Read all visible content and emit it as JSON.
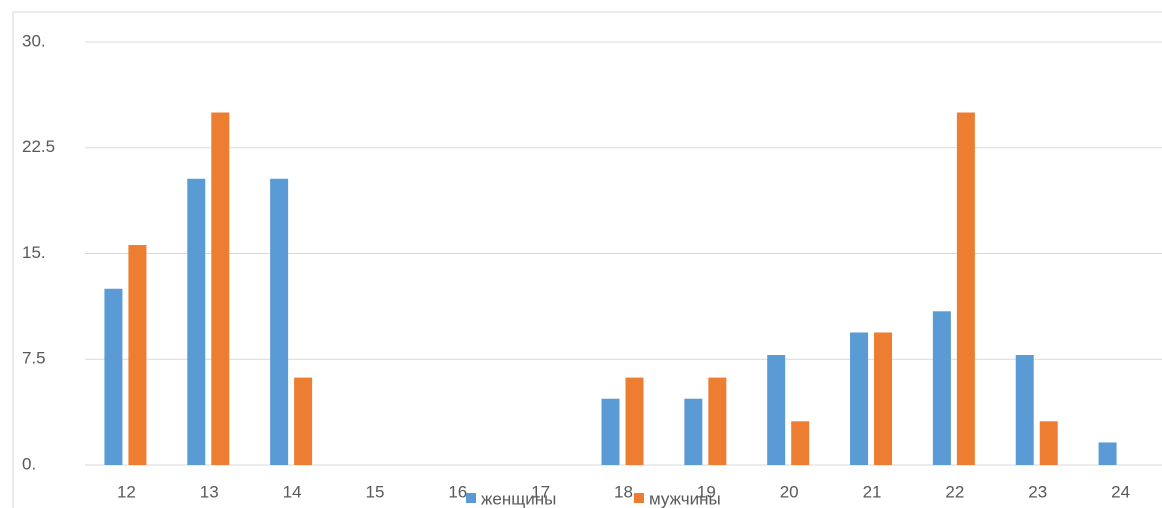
{
  "chart_data": {
    "type": "bar",
    "categories": [
      "12",
      "13",
      "14",
      "15",
      "16",
      "17",
      "18",
      "19",
      "20",
      "21",
      "22",
      "23",
      "24"
    ],
    "series": [
      {
        "name": "женщины",
        "color": "#5b9bd5",
        "values": [
          12.5,
          20.3,
          20.3,
          0,
          0,
          0,
          4.7,
          4.7,
          7.8,
          9.4,
          10.9,
          7.8,
          1.6
        ]
      },
      {
        "name": "мужчины",
        "color": "#ed7d31",
        "values": [
          15.6,
          25,
          6.2,
          0,
          0,
          0,
          6.2,
          6.2,
          3.1,
          9.4,
          25,
          3.1,
          0
        ]
      }
    ],
    "ylim": [
      0,
      30
    ],
    "yticks": [
      {
        "value": 0,
        "label": "0."
      },
      7.5,
      {
        "value": 15,
        "label": "15."
      },
      22.5,
      {
        "value": 30,
        "label": "30."
      }
    ],
    "grid": true,
    "legend": "bottom"
  }
}
